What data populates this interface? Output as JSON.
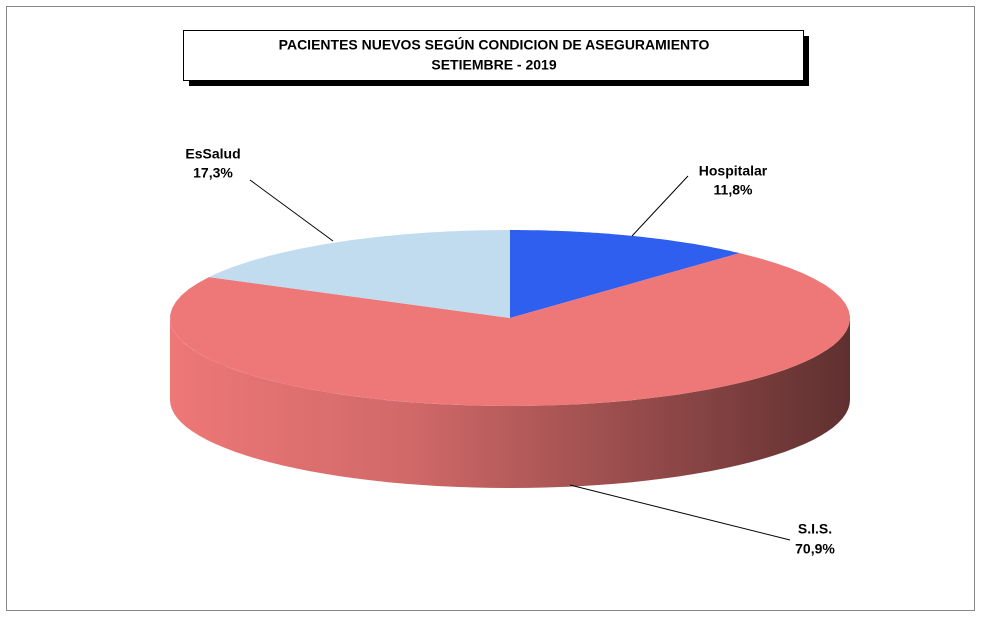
{
  "chart_data": {
    "type": "pie",
    "title": "PACIENTES NUEVOS SEGÚN CONDICION DE ASEGURAMIENTO",
    "subtitle": "SETIEMBRE - 2019",
    "categories": [
      "Hospitalar",
      "S.I.S.",
      "EsSalud"
    ],
    "values": [
      11.8,
      70.9,
      17.3
    ],
    "value_labels": [
      "11,8%",
      "70,9%",
      "17,3%"
    ],
    "colors": [
      "#2f5fef",
      "#ee7777",
      "#c0dcee"
    ]
  }
}
